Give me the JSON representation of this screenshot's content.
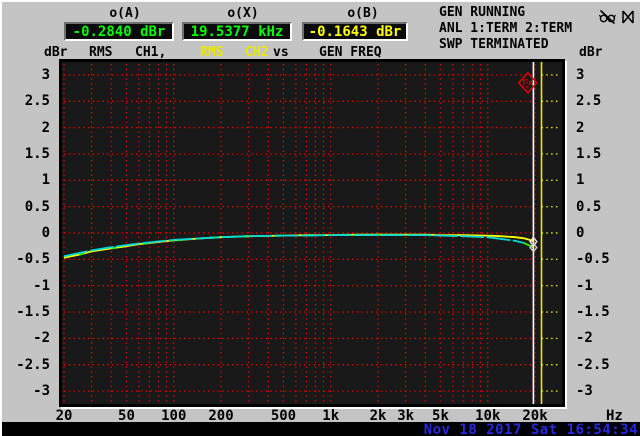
{
  "header": {
    "readouts": [
      {
        "name": "o(A)",
        "value": "-0.2840 dBr",
        "color": "#00ff00"
      },
      {
        "name": "o(X)",
        "value": "19.5377 kHz",
        "color": "#00ff00"
      },
      {
        "name": "o(B)",
        "value": "-0.1643 dBr",
        "color": "#ffff00"
      }
    ],
    "status_lines": [
      "GEN RUNNING",
      "ANL 1:TERM 2:TERM",
      "SWP TERMINATED"
    ],
    "icons": [
      "glasses-off",
      "sound-off"
    ]
  },
  "legend": {
    "y_unit_left": "dBr",
    "ch1_detector": "RMS",
    "ch1_name": "CH1,",
    "ch2_detector": "RMS",
    "ch2_name": "CH2",
    "vs": "vs",
    "x_source": "GEN FREQ",
    "y_unit_right": "dBr"
  },
  "statusbar": {
    "datetime": "Nov 18 2017 Sat 16:54:34"
  },
  "chart_data": {
    "type": "line",
    "title": "Frequency response sweep, RMS level CH1/CH2 vs generator frequency",
    "x_scale": "log",
    "xlabel": "Hz",
    "ylabel": "dBr",
    "xlim": [
      20,
      30000
    ],
    "ylim": [
      -3,
      3
    ],
    "grid": {
      "color": "#d40000",
      "right_region_color": "#e8e800",
      "minor_freqs": [
        20,
        30,
        40,
        50,
        60,
        70,
        80,
        90,
        100,
        200,
        300,
        400,
        500,
        600,
        700,
        800,
        900,
        1000,
        2000,
        3000,
        4000,
        5000,
        6000,
        7000,
        8000,
        9000,
        10000,
        20000
      ]
    },
    "x_ticks": [
      {
        "f": 20,
        "label": "20"
      },
      {
        "f": 50,
        "label": "50"
      },
      {
        "f": 100,
        "label": "100"
      },
      {
        "f": 200,
        "label": "200"
      },
      {
        "f": 500,
        "label": "500"
      },
      {
        "f": 1000,
        "label": "1k"
      },
      {
        "f": 2000,
        "label": "2k"
      },
      {
        "f": 3000,
        "label": "3k"
      },
      {
        "f": 5000,
        "label": "5k"
      },
      {
        "f": 10000,
        "label": "10k"
      },
      {
        "f": 20000,
        "label": "20k"
      }
    ],
    "x_unit": "Hz",
    "y_ticks": [
      {
        "v": 3,
        "label": "3"
      },
      {
        "v": 2.5,
        "label": "2.5"
      },
      {
        "v": 2,
        "label": "2"
      },
      {
        "v": 1.5,
        "label": "1.5"
      },
      {
        "v": 1,
        "label": "1"
      },
      {
        "v": 0.5,
        "label": "0.5"
      },
      {
        "v": 0,
        "label": "0"
      },
      {
        "v": -0.5,
        "label": "-0.5"
      },
      {
        "v": -1,
        "label": "-1"
      },
      {
        "v": -1.5,
        "label": "-1.5"
      },
      {
        "v": -2,
        "label": "-2"
      },
      {
        "v": -2.5,
        "label": "-2.5"
      },
      {
        "v": -3,
        "label": "-3"
      }
    ],
    "cursor": {
      "f": 19537.7,
      "color": "#ffffff"
    },
    "sweep_end_line": {
      "f": 22000,
      "color": "#e8e800"
    },
    "x": [
      20,
      25,
      30,
      40,
      50,
      60,
      80,
      100,
      150,
      200,
      300,
      500,
      700,
      1000,
      1500,
      2000,
      3000,
      4000,
      5000,
      7000,
      10000,
      12000,
      15000,
      17000,
      18500,
      19538
    ],
    "series": [
      {
        "name": "CH2",
        "color": "#ffff00",
        "values": [
          -0.47,
          -0.41,
          -0.35,
          -0.29,
          -0.25,
          -0.21,
          -0.17,
          -0.14,
          -0.1,
          -0.08,
          -0.06,
          -0.05,
          -0.04,
          -0.04,
          -0.03,
          -0.03,
          -0.03,
          -0.03,
          -0.04,
          -0.04,
          -0.05,
          -0.06,
          -0.08,
          -0.1,
          -0.13,
          -0.16
        ]
      },
      {
        "name": "CH1",
        "color": "#00d8d8",
        "hf_color": "#33ee00",
        "hf_split_f": 16000,
        "values": [
          -0.44,
          -0.38,
          -0.33,
          -0.27,
          -0.23,
          -0.2,
          -0.16,
          -0.13,
          -0.1,
          -0.08,
          -0.06,
          -0.05,
          -0.05,
          -0.04,
          -0.04,
          -0.04,
          -0.04,
          -0.04,
          -0.05,
          -0.06,
          -0.08,
          -0.11,
          -0.15,
          -0.19,
          -0.24,
          -0.28
        ]
      }
    ],
    "markers": [
      {
        "type": "cursor-diamond",
        "f": 19538,
        "v": -0.163,
        "color": "#f0f0f0"
      },
      {
        "type": "cursor-diamond",
        "f": 19538,
        "v": -0.275,
        "color": "#d0d0d0"
      },
      {
        "type": "alarm-diamond",
        "f": 18000,
        "v": 2.85,
        "color": "#dd0000"
      }
    ],
    "fleck_color": "#33ee00"
  }
}
